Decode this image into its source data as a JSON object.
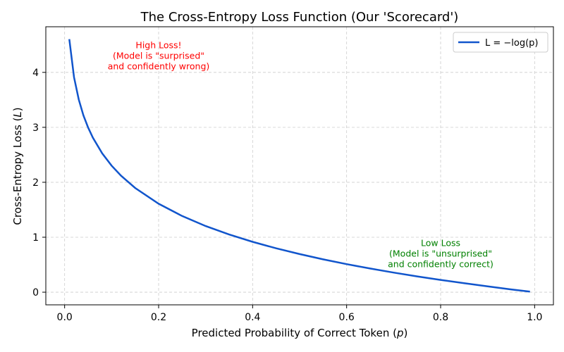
{
  "chart_data": {
    "type": "line",
    "title": "The Cross-Entropy Loss Function (Our 'Scorecard')",
    "xlabel": "Predicted Probability of Correct Token (p)",
    "ylabel": "Cross-Entropy Loss (L)",
    "xlim": [
      -0.04,
      1.04
    ],
    "ylim": [
      -0.23,
      4.83
    ],
    "xticks": [
      0.0,
      0.2,
      0.4,
      0.6,
      0.8,
      1.0
    ],
    "xtick_labels": [
      "0.0",
      "0.2",
      "0.4",
      "0.6",
      "0.8",
      "1.0"
    ],
    "yticks": [
      0,
      1,
      2,
      3,
      4
    ],
    "ytick_labels": [
      "0",
      "1",
      "2",
      "3",
      "4"
    ],
    "grid": true,
    "legend_position": "top-right",
    "series": [
      {
        "name": "L = −log(p)",
        "color": "#1155cc",
        "x": [
          0.01,
          0.02,
          0.03,
          0.04,
          0.05,
          0.06,
          0.08,
          0.1,
          0.12,
          0.15,
          0.2,
          0.25,
          0.3,
          0.35,
          0.4,
          0.45,
          0.5,
          0.55,
          0.6,
          0.65,
          0.7,
          0.75,
          0.8,
          0.85,
          0.9,
          0.95,
          0.99
        ],
        "y": [
          4.605,
          3.912,
          3.507,
          3.219,
          2.996,
          2.813,
          2.526,
          2.303,
          2.12,
          1.897,
          1.609,
          1.386,
          1.204,
          1.05,
          0.916,
          0.799,
          0.693,
          0.598,
          0.511,
          0.431,
          0.357,
          0.288,
          0.223,
          0.163,
          0.105,
          0.051,
          0.01
        ]
      }
    ],
    "annotations": [
      {
        "id": "high-loss",
        "lines": [
          "High Loss!",
          "(Model is \"surprised\"",
          "and confidently wrong)"
        ],
        "x": 0.2,
        "y": 4.3,
        "color": "#ff0000"
      },
      {
        "id": "low-loss",
        "lines": [
          "Low Loss",
          "(Model is \"unsurprised\"",
          "and confidently correct)"
        ],
        "x": 0.8,
        "y": 0.7,
        "color": "#008000"
      }
    ]
  }
}
